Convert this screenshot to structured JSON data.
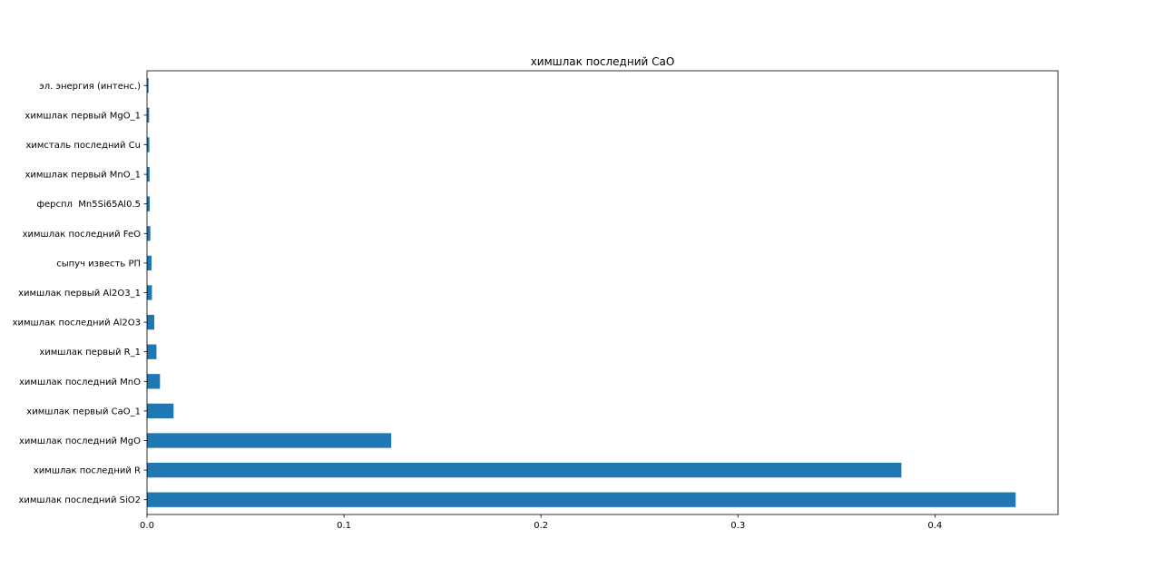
{
  "chart_data": {
    "type": "bar",
    "orientation": "horizontal",
    "title": "химшлак последний CaO",
    "xlabel": "",
    "ylabel": "",
    "categories": [
      "химшлак последний SiO2",
      "химшлак последний R",
      "химшлак последний MgO",
      "химшлак первый CaO_1",
      "химшлак последний MnO",
      "химшлак первый R_1",
      "химшлак последний Al2O3",
      "химшлак первый Al2O3_1",
      "сыпуч известь РП",
      "химшлак последний FeO",
      "ферспл  Mn5Si65Al0.5",
      "химшлак первый MnO_1",
      "химсталь последний Cu",
      "химшлак первый MgO_1",
      "эл. энергия (интенс.)"
    ],
    "values": [
      0.441,
      0.383,
      0.124,
      0.0135,
      0.0066,
      0.0048,
      0.0037,
      0.0025,
      0.0023,
      0.0017,
      0.0014,
      0.0013,
      0.0012,
      0.0011,
      0.0008
    ],
    "xlim": [
      0,
      0.4625
    ],
    "xticks": [
      "0.0",
      "0.1",
      "0.2",
      "0.3",
      "0.4"
    ],
    "xtick_values": [
      0,
      0.1,
      0.2,
      0.3,
      0.4
    ],
    "grid": false,
    "legend": "none",
    "bar_color": "#1f77b4"
  }
}
